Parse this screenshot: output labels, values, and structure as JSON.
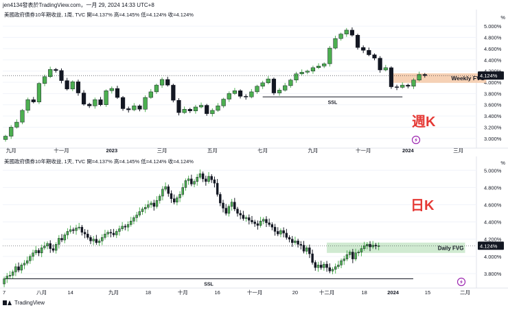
{
  "header": {
    "text": "jen4134發表於TradingView.com，一月 29, 2024 14:33 UTC+8"
  },
  "footer": {
    "brand": "TradingView"
  },
  "colors": {
    "up": "#4caf50",
    "down": "#131722",
    "fvg_weekly": "#f5c9a8",
    "fvg_daily": "#c8e6c9",
    "label": "#e53935",
    "price_tag": "#131722",
    "grid": "#f0f3fa"
  },
  "chart_data": [
    {
      "type": "candlestick",
      "title": "美國政府債券10年期收益, 1周, TVC  開=4.137%  高=4.145%  低=4.124%  收=4.124%",
      "axis_unit": "%",
      "yticks": [
        "5.000%",
        "4.800%",
        "4.600%",
        "4.400%",
        "4.200%",
        "4.000%",
        "3.800%",
        "3.600%",
        "3.400%",
        "3.200%",
        "3.000%"
      ],
      "ylim": [
        2.9,
        5.1
      ],
      "xticks": [
        {
          "label": "九月",
          "i": 1
        },
        {
          "label": "十一月",
          "i": 10
        },
        {
          "label": "2023",
          "i": 19
        },
        {
          "label": "三月",
          "i": 28
        },
        {
          "label": "五月",
          "i": 37
        },
        {
          "label": "七月",
          "i": 46
        },
        {
          "label": "九月",
          "i": 55
        },
        {
          "label": "十一月",
          "i": 64
        },
        {
          "label": "2024",
          "i": 72
        },
        {
          "label": "三月",
          "i": 81
        }
      ],
      "closes": [
        3.04,
        3.2,
        3.29,
        3.5,
        3.69,
        3.65,
        3.98,
        4.1,
        4.23,
        4.21,
        4.03,
        3.88,
        4.01,
        3.81,
        3.61,
        3.58,
        3.69,
        3.6,
        3.85,
        3.89,
        3.73,
        3.53,
        3.51,
        3.58,
        3.52,
        3.73,
        3.83,
        3.95,
        4.05,
        3.95,
        3.68,
        3.46,
        3.52,
        3.49,
        3.56,
        3.59,
        3.44,
        3.5,
        3.58,
        3.7,
        3.8,
        3.85,
        3.75,
        3.74,
        3.83,
        3.93,
        3.99,
        4.06,
        3.81,
        3.86,
        3.94,
        4.04,
        4.15,
        4.18,
        4.2,
        4.26,
        4.29,
        4.33,
        4.61,
        4.78,
        4.86,
        4.93,
        4.84,
        4.62,
        4.57,
        4.49,
        4.43,
        4.22,
        4.26,
        3.92,
        3.91,
        3.95,
        3.93,
        4.04,
        4.14,
        4.12
      ],
      "last_close": "4.124%",
      "fvg": {
        "label": "Weekly FVG",
        "i0": 69,
        "i1": 86,
        "lo": 3.99,
        "hi": 4.16
      },
      "ssl": {
        "label": "SSL",
        "i0": 46,
        "i1": 71,
        "level": 3.74
      },
      "period_label": "週K"
    },
    {
      "type": "candlestick",
      "title": "美國政府債券10年期收益, 1天, TVC  開=4.137%  高=4.145%  低=4.124%  收=4.124%",
      "axis_unit": "%",
      "yticks": [
        "5.000%",
        "4.800%",
        "4.600%",
        "4.400%",
        "4.200%",
        "4.000%",
        "3.800%"
      ],
      "ylim": [
        3.68,
        5.05
      ],
      "xticks": [
        {
          "label": "7",
          "i": 0
        },
        {
          "label": "八月",
          "i": 13
        },
        {
          "label": "14",
          "i": 23
        },
        {
          "label": "九月",
          "i": 38
        },
        {
          "label": "18",
          "i": 50
        },
        {
          "label": "十月",
          "i": 62
        },
        {
          "label": "16",
          "i": 74
        },
        {
          "label": "十一月",
          "i": 87
        },
        {
          "label": "20",
          "i": 101
        },
        {
          "label": "十二月",
          "i": 112
        },
        {
          "label": "18",
          "i": 125
        },
        {
          "label": "2024",
          "i": 135
        },
        {
          "label": "15",
          "i": 147
        },
        {
          "label": "二月",
          "i": 160
        }
      ],
      "closes": [
        3.74,
        3.77,
        3.78,
        3.82,
        3.88,
        3.84,
        3.9,
        3.92,
        3.95,
        4.0,
        4.04,
        4.07,
        4.04,
        4.1,
        4.12,
        4.15,
        4.09,
        4.07,
        4.14,
        4.21,
        4.19,
        4.25,
        4.29,
        4.31,
        4.3,
        4.33,
        4.34,
        4.28,
        4.26,
        4.22,
        4.18,
        4.2,
        4.16,
        4.18,
        4.22,
        4.26,
        4.28,
        4.27,
        4.25,
        4.29,
        4.32,
        4.35,
        4.34,
        4.37,
        4.41,
        4.45,
        4.48,
        4.52,
        4.55,
        4.57,
        4.6,
        4.62,
        4.58,
        4.65,
        4.7,
        4.78,
        4.81,
        4.73,
        4.67,
        4.63,
        4.68,
        4.72,
        4.8,
        4.88,
        4.9,
        4.84,
        4.87,
        4.92,
        4.96,
        4.9,
        4.87,
        4.93,
        4.89,
        4.85,
        4.72,
        4.62,
        4.56,
        4.5,
        4.58,
        4.63,
        4.55,
        4.5,
        4.48,
        4.44,
        4.45,
        4.42,
        4.4,
        4.38,
        4.36,
        4.41,
        4.43,
        4.39,
        4.37,
        4.34,
        4.29,
        4.26,
        4.3,
        4.27,
        4.22,
        4.2,
        4.16,
        4.18,
        4.14,
        4.13,
        4.06,
        4.1,
        4.03,
        3.93,
        3.87,
        3.9,
        3.87,
        3.91,
        3.87,
        3.83,
        3.85,
        3.88,
        3.9,
        3.95,
        3.97,
        4.02,
        4.05,
        3.97,
        4.04,
        4.05,
        4.09,
        4.12,
        4.14,
        4.11,
        4.13,
        4.12,
        4.124
      ],
      "last_close": "4.124%",
      "fvg": {
        "label": "Daily FVG",
        "i0": 112,
        "i1": 160,
        "lo": 4.04,
        "hi": 4.16
      },
      "ssl": {
        "label": "SSL",
        "i0": 0,
        "i1": 142,
        "level": 3.74
      },
      "period_label": "日K"
    }
  ]
}
